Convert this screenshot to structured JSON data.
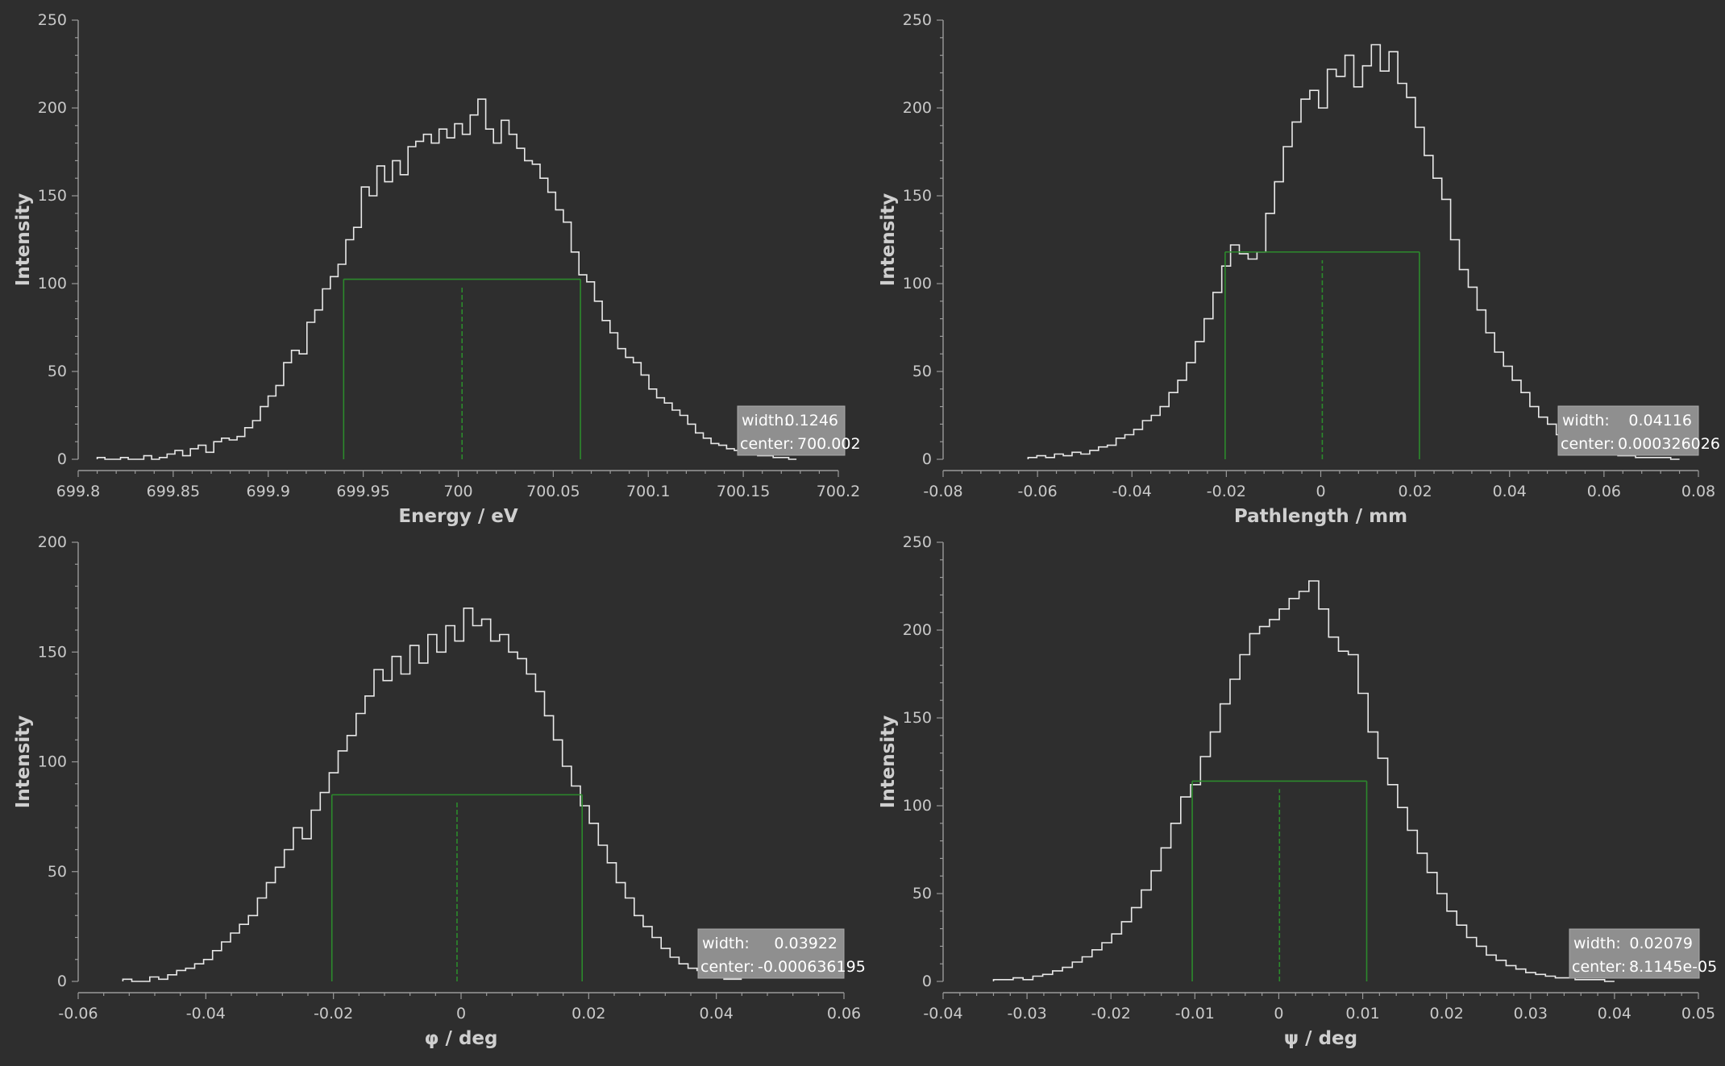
{
  "chart_data": [
    {
      "type": "line",
      "step": true,
      "xlabel": "Energy / eV",
      "ylabel": "Intensity",
      "xlim": [
        699.8,
        700.2
      ],
      "ylim": [
        0,
        250
      ],
      "xticks": [
        "699.8",
        "699.85",
        "699.9",
        "699.95",
        "700",
        "700.05",
        "700.1",
        "700.15",
        "700.2"
      ],
      "yticks": [
        "0",
        "50",
        "100",
        "150",
        "200",
        "250"
      ],
      "center": 700.002,
      "width": 0.1246,
      "info": {
        "width_label": "width:",
        "width_value": "0.1246",
        "center_label": "center:",
        "center_value": "700.002"
      },
      "x_range": [
        699.81,
        700.178
      ],
      "series": [
        {
          "values": [
            1,
            0,
            0,
            1,
            0,
            0,
            2,
            0,
            1,
            3,
            5,
            2,
            6,
            8,
            4,
            10,
            12,
            11,
            13,
            18,
            22,
            30,
            36,
            42,
            55,
            62,
            60,
            78,
            85,
            97,
            104,
            111,
            125,
            132,
            155,
            150,
            167,
            158,
            170,
            162,
            178,
            181,
            185,
            180,
            188,
            183,
            191,
            185,
            196,
            205,
            188,
            180,
            193,
            185,
            177,
            170,
            168,
            160,
            152,
            142,
            135,
            118,
            105,
            101,
            90,
            79,
            72,
            63,
            58,
            55,
            48,
            40,
            35,
            32,
            28,
            25,
            20,
            15,
            12,
            9,
            8,
            6,
            5,
            4,
            3,
            2,
            2,
            1,
            1,
            0
          ]
        }
      ]
    },
    {
      "type": "line",
      "step": true,
      "xlabel": "Pathlength / mm",
      "ylabel": "Intensity",
      "xlim": [
        -0.08,
        0.08
      ],
      "ylim": [
        0,
        250
      ],
      "xticks": [
        "-0.08",
        "-0.06",
        "-0.04",
        "-0.02",
        "0",
        "0.02",
        "0.04",
        "0.06",
        "0.08"
      ],
      "yticks": [
        "0",
        "50",
        "100",
        "150",
        "200",
        "250"
      ],
      "center": 0.000326026,
      "width": 0.04116,
      "info": {
        "width_label": "width:",
        "width_value": "0.04116",
        "center_label": "center:",
        "center_value": "0.000326026"
      },
      "x_range": [
        -0.062,
        0.076
      ],
      "series": [
        {
          "values": [
            1,
            2,
            1,
            3,
            2,
            4,
            3,
            5,
            7,
            8,
            12,
            14,
            17,
            22,
            25,
            30,
            38,
            45,
            55,
            67,
            80,
            95,
            110,
            122,
            117,
            114,
            118,
            140,
            158,
            178,
            192,
            205,
            210,
            200,
            222,
            218,
            230,
            212,
            224,
            236,
            221,
            232,
            214,
            206,
            189,
            173,
            160,
            148,
            125,
            108,
            98,
            85,
            72,
            61,
            53,
            45,
            38,
            30,
            24,
            20,
            14,
            10,
            8,
            6,
            5,
            4,
            3,
            2,
            2,
            1,
            1,
            1,
            1,
            0
          ]
        }
      ]
    },
    {
      "type": "line",
      "step": true,
      "xlabel": "φ / deg",
      "ylabel": "Intensity",
      "xlim": [
        -0.06,
        0.06
      ],
      "ylim": [
        0,
        200
      ],
      "xticks": [
        "-0.06",
        "-0.04",
        "-0.02",
        "0",
        "0.02",
        "0.04",
        "0.06"
      ],
      "yticks": [
        "0",
        "50",
        "100",
        "150",
        "200"
      ],
      "center": -0.000636195,
      "width": 0.03922,
      "info": {
        "width_label": "width:",
        "width_value": "0.03922",
        "center_label": "center:",
        "center_value": "-0.000636195"
      },
      "x_range": [
        -0.053,
        0.044
      ],
      "series": [
        {
          "values": [
            1,
            0,
            0,
            2,
            1,
            3,
            5,
            6,
            8,
            10,
            14,
            18,
            22,
            26,
            30,
            38,
            45,
            52,
            60,
            70,
            65,
            78,
            86,
            95,
            105,
            112,
            122,
            130,
            142,
            137,
            148,
            140,
            153,
            145,
            158,
            150,
            162,
            155,
            170,
            162,
            165,
            155,
            158,
            150,
            147,
            140,
            132,
            121,
            110,
            98,
            89,
            80,
            72,
            62,
            54,
            45,
            38,
            30,
            25,
            20,
            15,
            11,
            8,
            6,
            5,
            3,
            2,
            1,
            1
          ]
        }
      ]
    },
    {
      "type": "line",
      "step": true,
      "xlabel": "ψ / deg",
      "ylabel": "Intensity",
      "xlim": [
        -0.04,
        0.05
      ],
      "ylim": [
        0,
        250
      ],
      "xticks": [
        "-0.04",
        "-0.03",
        "-0.02",
        "-0.01",
        "0",
        "0.01",
        "0.02",
        "0.03",
        "0.04",
        "0.05"
      ],
      "yticks": [
        "0",
        "50",
        "100",
        "150",
        "200",
        "250"
      ],
      "center": 8.1145e-05,
      "width": 0.02079,
      "info": {
        "width_label": "width:",
        "width_value": "0.02079",
        "center_label": "center:",
        "center_value": "8.1145e-05"
      },
      "x_range": [
        -0.034,
        0.04
      ],
      "series": [
        {
          "values": [
            1,
            1,
            2,
            1,
            3,
            4,
            6,
            8,
            11,
            14,
            18,
            22,
            27,
            34,
            42,
            52,
            63,
            76,
            90,
            105,
            112,
            128,
            142,
            158,
            172,
            186,
            198,
            202,
            206,
            212,
            218,
            222,
            228,
            212,
            196,
            188,
            186,
            164,
            142,
            127,
            112,
            99,
            86,
            73,
            62,
            50,
            40,
            32,
            25,
            20,
            15,
            12,
            9,
            7,
            5,
            4,
            3,
            2,
            2,
            1,
            1,
            1,
            0
          ]
        }
      ]
    }
  ],
  "colors": {
    "background": "#2e2e2e",
    "histogram": "#e8e8e8",
    "fwhm": "#2c8a2c",
    "infobox": "#8f8f8f"
  }
}
